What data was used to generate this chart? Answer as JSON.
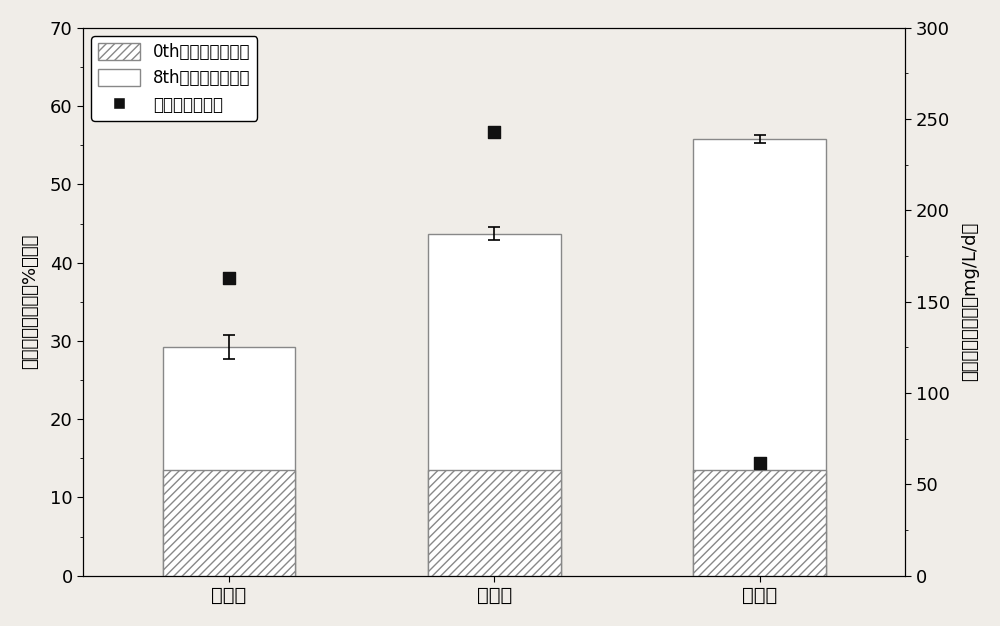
{
  "categories": [
    "磷充足",
    "磷限制",
    "磷缺乏"
  ],
  "bar0_values": [
    13.5,
    13.5,
    13.5
  ],
  "bar8_values": [
    29.2,
    43.7,
    55.8
  ],
  "bar8_errors": [
    1.5,
    0.8,
    0.5
  ],
  "productivity_values": [
    163,
    243,
    62
  ],
  "left_ylim": [
    0,
    70
  ],
  "left_yticks": [
    0,
    10,
    20,
    30,
    40,
    50,
    60,
    70
  ],
  "right_ylim": [
    0,
    300
  ],
  "right_yticks": [
    0,
    50,
    100,
    150,
    200,
    250,
    300
  ],
  "bar_width": 0.5,
  "bar0_hatch": "////",
  "bar0_edgecolor": "#888888",
  "bar8_edgecolor": "#888888",
  "productivity_color": "#111111",
  "productivity_marker": "s",
  "left_ylabel": "脂肪酸甲酯含量（%干重）",
  "right_ylabel": "脂肪酸甲酯产率（mg/L/d）",
  "legend_label_0": "0th脂肪酸甲酯含量",
  "legend_label_8": "8th脂肪酸甲酯含量",
  "legend_label_p": "脂肪酸甲酯产率",
  "background_color": "#f0ede8",
  "plot_bg_color": "#f0ede8"
}
